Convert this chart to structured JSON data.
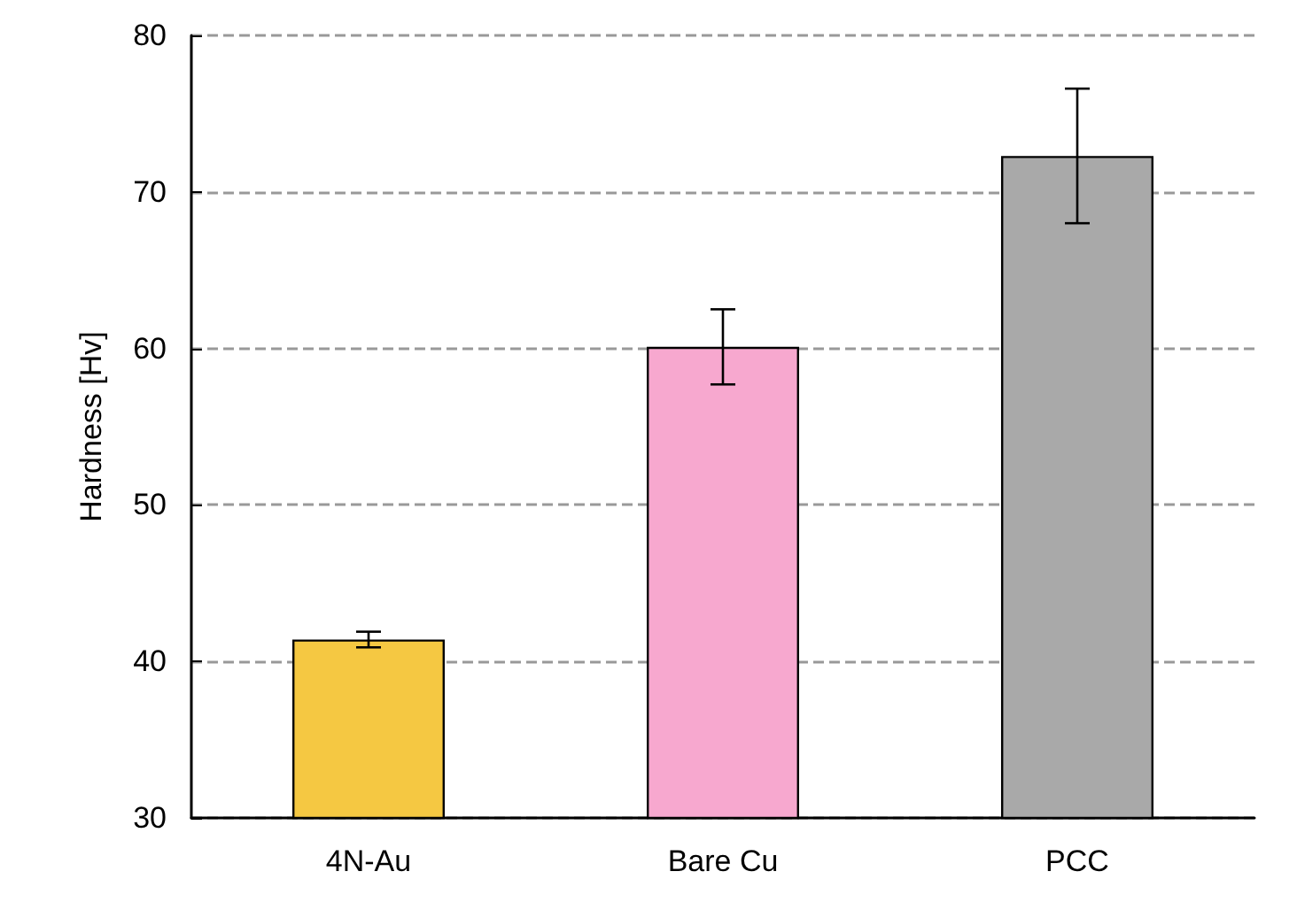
{
  "chart_data": {
    "type": "bar",
    "ylabel": "Hardness [Hv]",
    "categories": [
      "4N-Au",
      "Bare Cu",
      "PCC"
    ],
    "values": [
      41.4,
      60.1,
      72.3
    ],
    "errors": [
      0.5,
      2.4,
      4.3
    ],
    "colors": [
      "#f5c842",
      "#f7a8cf",
      "#a9a9a9"
    ],
    "ylim": [
      30,
      80
    ],
    "yticks": [
      30,
      40,
      50,
      60,
      70,
      80
    ],
    "grid": "y"
  }
}
